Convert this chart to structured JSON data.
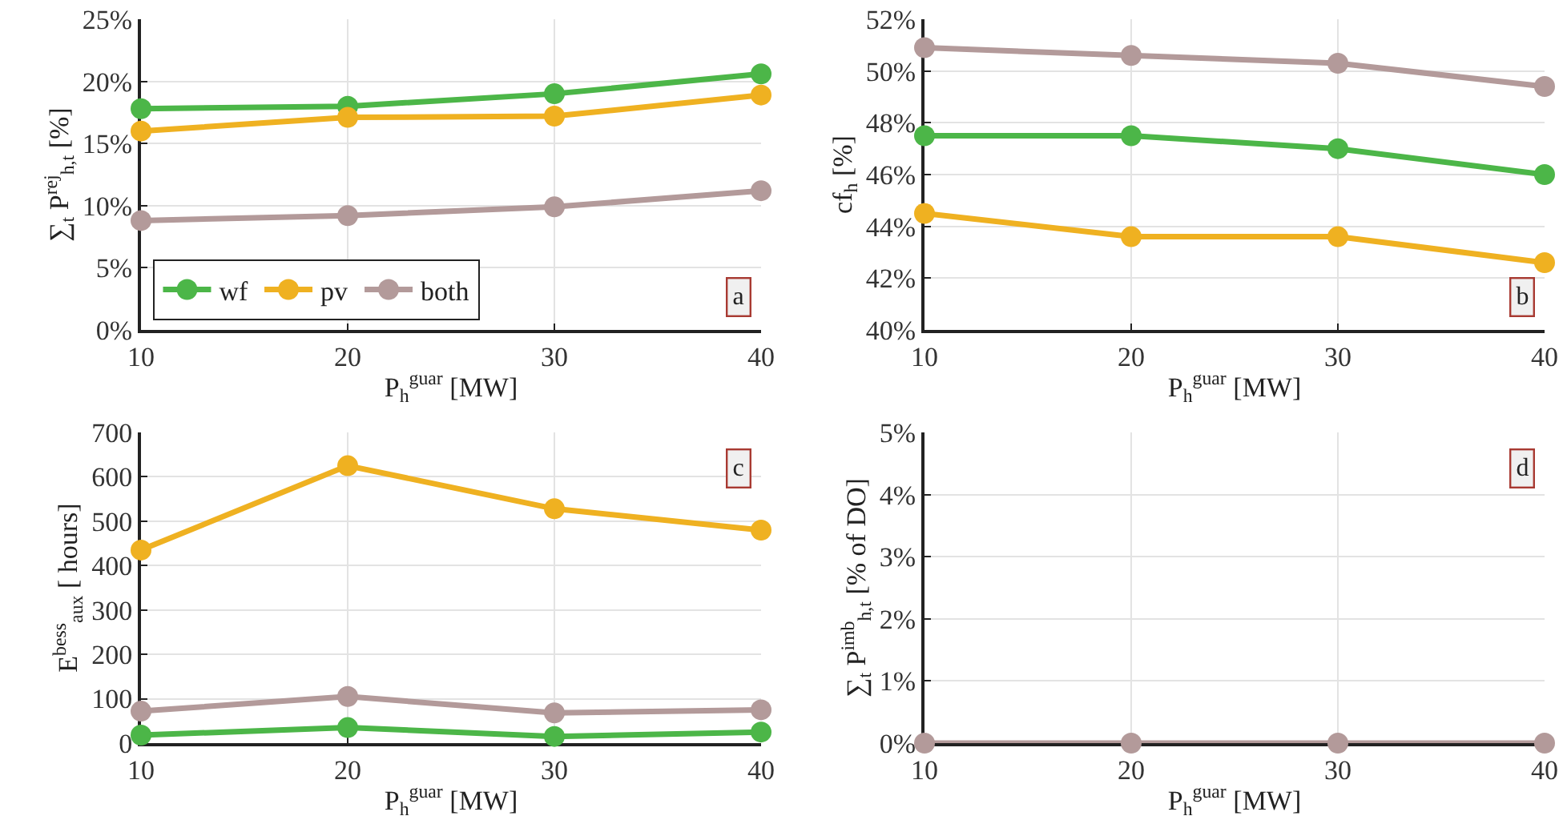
{
  "chart_data": [
    {
      "type": "line",
      "xlabel": "P$_{h}$$^{guar}$ [MW]",
      "ylabel": "∑$_{t}$ P$^{rej}$$_{h,t}$ [%]",
      "x": [
        10,
        20,
        30,
        40
      ],
      "xlim": [
        10,
        40
      ],
      "xticks": [
        10,
        20,
        30,
        40
      ],
      "ylim": [
        0,
        25
      ],
      "yticks": [
        {
          "value": 0,
          "label": "0%"
        },
        {
          "value": 5,
          "label": "5%"
        },
        {
          "value": 10,
          "label": "10%"
        },
        {
          "value": 15,
          "label": "15%"
        },
        {
          "value": 20,
          "label": "20%"
        },
        {
          "value": 25,
          "label": "25%"
        }
      ],
      "grid": true,
      "marker": "circle",
      "legend": "bottom",
      "annotations": [
        "a"
      ],
      "series": [
        {
          "name": "wf",
          "color": "#4cb648",
          "values": [
            17.8,
            18.0,
            19.0,
            20.6
          ]
        },
        {
          "name": "pv",
          "color": "#efb121",
          "values": [
            16.0,
            17.1,
            17.2,
            18.9
          ]
        },
        {
          "name": "both",
          "color": "#b39a9a",
          "values": [
            8.8,
            9.2,
            9.9,
            11.2
          ]
        }
      ]
    },
    {
      "type": "line",
      "xlabel": "P$_{h}$$^{guar}$ [MW]",
      "ylabel": "cf$_{h}$ [%]",
      "x": [
        10,
        20,
        30,
        40
      ],
      "xlim": [
        10,
        40
      ],
      "xticks": [
        10,
        20,
        30,
        40
      ],
      "ylim": [
        40,
        52
      ],
      "yticks": [
        {
          "value": 40,
          "label": "40%"
        },
        {
          "value": 42,
          "label": "42%"
        },
        {
          "value": 44,
          "label": "44%"
        },
        {
          "value": 46,
          "label": "46%"
        },
        {
          "value": 48,
          "label": "48%"
        },
        {
          "value": 50,
          "label": "50%"
        },
        {
          "value": 52,
          "label": "52%"
        }
      ],
      "grid": true,
      "marker": "circle",
      "annotations": [
        "b"
      ],
      "series": [
        {
          "color": "#4cb648",
          "values": [
            47.5,
            47.5,
            47.0,
            46.0
          ]
        },
        {
          "color": "#efb121",
          "values": [
            44.5,
            43.6,
            43.6,
            42.6
          ]
        },
        {
          "color": "#b39a9a",
          "values": [
            50.9,
            50.6,
            50.3,
            49.4
          ]
        }
      ]
    },
    {
      "type": "line",
      "xlabel": "P$_{h}$$^{guar}$ [MW]",
      "ylabel": "E$^{bess}$$_{aux}$ [ hours]",
      "x": [
        10,
        20,
        30,
        40
      ],
      "xlim": [
        10,
        40
      ],
      "xticks": [
        10,
        20,
        30,
        40
      ],
      "ylim": [
        0,
        700
      ],
      "yticks": [
        0,
        100,
        200,
        300,
        400,
        500,
        600,
        700
      ],
      "grid": true,
      "marker": "circle",
      "annotations": [
        "c"
      ],
      "series": [
        {
          "color": "#4cb648",
          "values": [
            18,
            35,
            15,
            25
          ]
        },
        {
          "color": "#efb121",
          "values": [
            435,
            625,
            528,
            480
          ]
        },
        {
          "color": "#b39a9a",
          "values": [
            72,
            105,
            68,
            75
          ]
        }
      ]
    },
    {
      "type": "line",
      "xlabel": "P$_{h}$$^{guar}$ [MW]",
      "ylabel": "∑$_{t}$ P$^{imb}$$_{h,t}$ [% of DO]",
      "x": [
        10,
        20,
        30,
        40
      ],
      "xlim": [
        10,
        40
      ],
      "xticks": [
        10,
        20,
        30,
        40
      ],
      "ylim": [
        0,
        5
      ],
      "yticks": [
        {
          "value": 0,
          "label": "0%"
        },
        {
          "value": 1,
          "label": "1%"
        },
        {
          "value": 2,
          "label": "2%"
        },
        {
          "value": 3,
          "label": "3%"
        },
        {
          "value": 4,
          "label": "4%"
        },
        {
          "value": 5,
          "label": "5%"
        }
      ],
      "grid": true,
      "marker": "circle",
      "annotations": [
        "d"
      ],
      "series": [
        {
          "color": "#b39a9a",
          "values": [
            0,
            0,
            0,
            0
          ]
        }
      ]
    }
  ]
}
